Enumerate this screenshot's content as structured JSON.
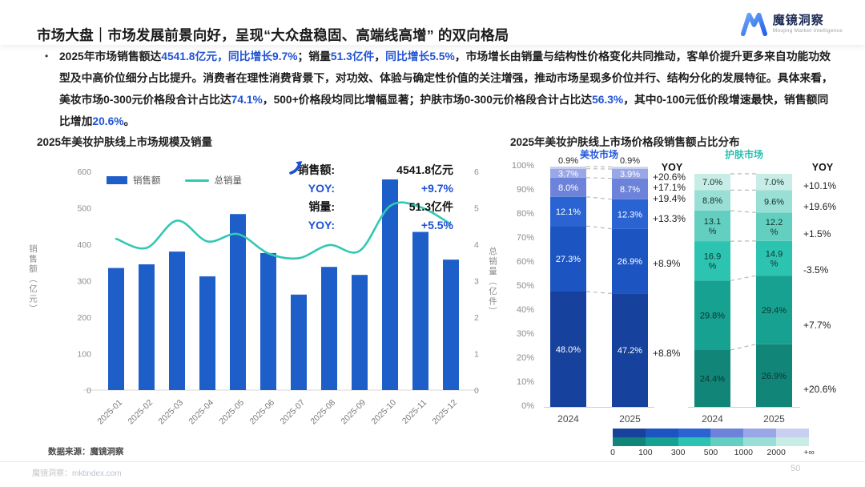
{
  "header": {
    "title": "市场大盘｜市场发展前景向好，呈现“大众盘稳固、高端线高增” 的双向格局",
    "logo": {
      "name": "魔镜洞察",
      "subtitle": "Moojing Market Intelligence"
    }
  },
  "summary": {
    "bullet": "•",
    "segments": [
      {
        "text": "2025年市场销售额达",
        "hl": false
      },
      {
        "text": "4541.8亿元，同比增长9.7%",
        "hl": true
      },
      {
        "text": "；销量",
        "hl": false
      },
      {
        "text": "51.3亿件",
        "hl": true
      },
      {
        "text": "，",
        "hl": false
      },
      {
        "text": "同比增长5.5%",
        "hl": true
      },
      {
        "text": "，市场增长由销量与结构性价格变化共同推动，客单价提升更多来自功能功效型及中高价位细分占比提升。消费者在理性消费背景下，对功效、体验与确定性价值的关注增强，推动市场呈现多价位并行、结构分化的发展特征。具体来看，美妆市场0-300元价格段合计占比达",
        "hl": false
      },
      {
        "text": "74.1%",
        "hl": true
      },
      {
        "text": "，500+价格段均同比增幅显著；护肤市场0-300元价格段合计占比达",
        "hl": false
      },
      {
        "text": "56.3%",
        "hl": true
      },
      {
        "text": "，其中0-100元低价段增速最快，销售额同比增加",
        "hl": false
      },
      {
        "text": "20.6%",
        "hl": true
      },
      {
        "text": "。",
        "hl": false
      }
    ]
  },
  "colors": {
    "bar_blue": "#1e5ec8",
    "line_teal": "#31c8b4",
    "accent_blue": "#2153d4",
    "beauty_header": "#2458d8",
    "skincare_header": "#2bbfae",
    "beauty_stack": [
      "#16419c",
      "#1c55c2",
      "#2a63d2",
      "#6d83da",
      "#9aa7e6",
      "#c9cff0"
    ],
    "skincare_stack": [
      "#108578",
      "#17a190",
      "#2cc3b0",
      "#63cfc0",
      "#9adfd5",
      "#c8ece6"
    ]
  },
  "chart_data": [
    {
      "type": "bar+line",
      "title": "2025年美妆护肤线上市场规模及销量",
      "categories": [
        "2025-01",
        "2025-02",
        "2025-03",
        "2025-04",
        "2025-05",
        "2025-06",
        "2025-07",
        "2025-08",
        "2025-09",
        "2025-10",
        "2025-11",
        "2025-12"
      ],
      "series": [
        {
          "name": "销售额",
          "type": "bar",
          "axis": "left",
          "values": [
            335,
            345,
            380,
            312,
            483,
            376,
            262,
            338,
            316,
            578,
            434,
            358
          ]
        },
        {
          "name": "总销量",
          "type": "line",
          "axis": "right",
          "values": [
            4.15,
            3.9,
            4.65,
            4.08,
            4.28,
            3.75,
            3.62,
            3.98,
            3.82,
            5.05,
            5.02,
            4.55
          ]
        }
      ],
      "left_axis": {
        "label": "销售额（亿元）",
        "min": 0,
        "max": 600,
        "step": 100
      },
      "right_axis": {
        "label": "总销量（亿件）",
        "min": 0,
        "max": 6,
        "step": 1
      },
      "grid": false,
      "legend_position": "top",
      "annotation": {
        "sales_label": "销售额:",
        "sales_value": "4541.8亿元",
        "sales_yoy_label": "YOY:",
        "sales_yoy": "+9.7%",
        "volume_label": "销量:",
        "volume_value": "51.3亿件",
        "volume_yoy_label": "YOY:",
        "volume_yoy": "+5.5%"
      }
    },
    {
      "type": "stacked-bar",
      "title": "2025年美妆护肤线上市场价格段销售额占比分布",
      "price_bands_bottom_to_top": [
        "0-100",
        "100-300",
        "300-500",
        "500-1000",
        "1000-2000",
        "2000-+∞"
      ],
      "y_ticks": [
        "100%",
        "90%",
        "80%",
        "70%",
        "60%",
        "50%",
        "40%",
        "30%",
        "20%",
        "10%",
        "0%"
      ],
      "yoy_header": "YOY",
      "legend_ticks": [
        "0",
        "100",
        "300",
        "500",
        "1000",
        "2000",
        "+∞"
      ],
      "groups": [
        {
          "name": "美妆市场",
          "years": [
            "2024",
            "2025"
          ],
          "values_bottom_to_top": {
            "2024": [
              48.0,
              27.3,
              12.1,
              8.0,
              3.7,
              0.9
            ],
            "2025": [
              47.2,
              26.9,
              12.3,
              8.7,
              3.9,
              0.9
            ]
          },
          "labels_bottom_to_top": {
            "2024": [
              "48.0%",
              "27.3%",
              "12.1%",
              "8.0%",
              "3.7%",
              "0.9%"
            ],
            "2025": [
              "47.2%",
              "26.9%",
              "12.3%",
              "8.7%",
              "3.9%",
              "0.9%"
            ]
          },
          "yoy_top_to_bottom": [
            "+20.6%",
            "+17.1%",
            "+19.4%",
            "+13.3%",
            "+8.9%",
            "+8.8%"
          ]
        },
        {
          "name": "护肤市场",
          "years": [
            "2024",
            "2025"
          ],
          "values_bottom_to_top": {
            "2024": [
              24.4,
              29.8,
              16.9,
              13.1,
              8.8,
              7.0
            ],
            "2025": [
              26.9,
              29.4,
              14.9,
              12.2,
              9.6,
              7.0
            ]
          },
          "labels_bottom_to_top": {
            "2024": [
              "24.4%",
              "29.8%",
              "16.9\n%",
              "13.1\n%",
              "8.8%",
              "7.0%"
            ],
            "2025": [
              "26.9%",
              "29.4%",
              "14.9\n%",
              "12.2\n%",
              "9.6%",
              "7.0%"
            ]
          },
          "yoy_top_to_bottom": [
            "+10.1%",
            "+19.6%",
            "+1.5%",
            "-3.5%",
            "+7.7%",
            "+20.6%"
          ]
        }
      ]
    }
  ],
  "footer": {
    "source": "数据来源：魔镜洞察",
    "brand": "魔镜洞察：",
    "link": "mktindex.com",
    "page": "50"
  }
}
